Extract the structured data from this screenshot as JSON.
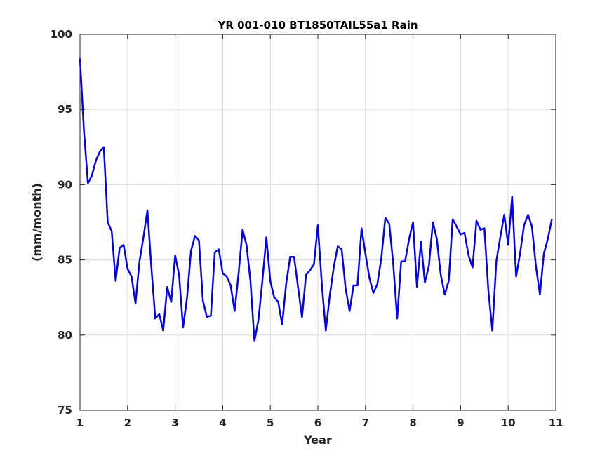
{
  "chart_data": {
    "type": "line",
    "title": "YR 001-010 BT1850TAIL55a1 Rain",
    "xlabel": "Year",
    "ylabel": "(mm/month)",
    "xlim": [
      1,
      11
    ],
    "ylim": [
      75,
      100
    ],
    "x_ticks": [
      1,
      2,
      3,
      4,
      5,
      6,
      7,
      8,
      9,
      10,
      11
    ],
    "y_ticks": [
      75,
      80,
      85,
      90,
      95,
      100
    ],
    "grid": true,
    "line_color": "#0000ff",
    "series": [
      {
        "x": [
          1.0,
          1.083,
          1.167,
          1.25,
          1.333,
          1.417,
          1.5,
          1.583,
          1.667,
          1.75,
          1.833,
          1.917,
          2.0,
          2.083,
          2.167,
          2.25,
          2.333,
          2.417,
          2.5,
          2.583,
          2.667,
          2.75,
          2.833,
          2.917,
          3.0,
          3.083,
          3.167,
          3.25,
          3.333,
          3.417,
          3.5,
          3.583,
          3.667,
          3.75,
          3.833,
          3.917,
          4.0,
          4.083,
          4.167,
          4.25,
          4.333,
          4.417,
          4.5,
          4.583,
          4.667,
          4.75,
          4.833,
          4.917,
          5.0,
          5.083,
          5.167,
          5.25,
          5.333,
          5.417,
          5.5,
          5.583,
          5.667,
          5.75,
          5.833,
          5.917,
          6.0,
          6.083,
          6.167,
          6.25,
          6.333,
          6.417,
          6.5,
          6.583,
          6.667,
          6.75,
          6.833,
          6.917,
          7.0,
          7.083,
          7.167,
          7.25,
          7.333,
          7.417,
          7.5,
          7.583,
          7.667,
          7.75,
          7.833,
          7.917,
          8.0,
          8.083,
          8.167,
          8.25,
          8.333,
          8.417,
          8.5,
          8.583,
          8.667,
          8.75,
          8.833,
          8.917,
          9.0,
          9.083,
          9.167,
          9.25,
          9.333,
          9.417,
          9.5,
          9.583,
          9.667,
          9.75,
          9.833,
          9.917,
          10.0,
          10.083,
          10.167,
          10.25,
          10.333,
          10.417,
          10.5,
          10.583,
          10.667,
          10.75,
          10.833,
          10.917
        ],
        "y": [
          98.4,
          93.6,
          90.1,
          90.6,
          91.6,
          92.2,
          92.5,
          87.5,
          86.9,
          83.6,
          85.8,
          86.0,
          84.4,
          83.9,
          82.1,
          84.9,
          86.5,
          88.3,
          84.5,
          81.1,
          81.4,
          80.3,
          83.2,
          82.2,
          85.3,
          84.0,
          80.5,
          82.5,
          85.6,
          86.6,
          86.3,
          82.3,
          81.2,
          81.3,
          85.5,
          85.7,
          84.1,
          83.9,
          83.3,
          81.6,
          84.1,
          87.0,
          86.0,
          83.6,
          79.6,
          81.0,
          83.6,
          86.5,
          83.6,
          82.5,
          82.2,
          80.7,
          83.4,
          85.2,
          85.2,
          83.2,
          81.2,
          84.0,
          84.3,
          84.7,
          87.3,
          83.4,
          80.3,
          82.6,
          84.5,
          85.9,
          85.7,
          83.1,
          81.6,
          83.3,
          83.3,
          87.1,
          85.4,
          83.8,
          82.8,
          83.4,
          85.1,
          87.8,
          87.4,
          84.8,
          81.1,
          84.9,
          84.9,
          86.4,
          87.5,
          83.2,
          86.2,
          83.5,
          84.6,
          87.5,
          86.4,
          84.0,
          82.7,
          83.6,
          87.7,
          87.2,
          86.7,
          86.8,
          85.3,
          84.5,
          87.6,
          87.0,
          87.1,
          83.0,
          80.3,
          84.9,
          86.5,
          88.0,
          86.0,
          89.2,
          83.9,
          85.4,
          87.3,
          88.0,
          87.2,
          84.6,
          82.7,
          85.4,
          86.4,
          87.7
        ]
      }
    ]
  }
}
